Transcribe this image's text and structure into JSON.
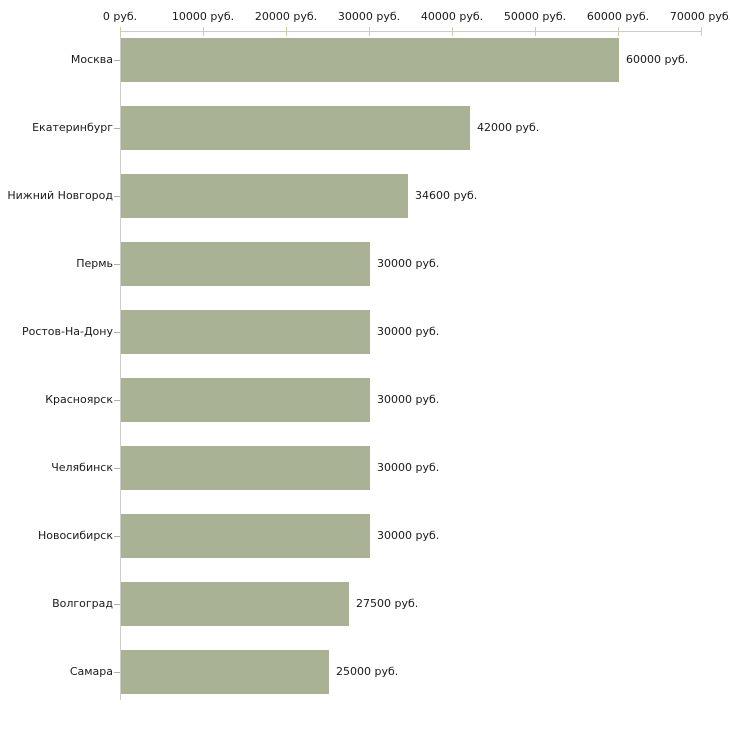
{
  "chart_data": {
    "type": "bar",
    "orientation": "horizontal",
    "title": "",
    "categories": [
      "Москва",
      "Екатеринбург",
      "Нижний Новгород",
      "Пермь",
      "Ростов-На-Дону",
      "Красноярск",
      "Челябинск",
      "Новосибирск",
      "Волгоград",
      "Самара"
    ],
    "values": [
      60000,
      42000,
      34600,
      30000,
      30000,
      30000,
      30000,
      30000,
      27500,
      25000
    ],
    "value_labels": [
      "60000 руб.",
      "42000 руб.",
      "34600 руб.",
      "30000 руб.",
      "30000 руб.",
      "30000 руб.",
      "30000 руб.",
      "30000 руб.",
      "27500 руб.",
      "25000 руб."
    ],
    "x_ticks": [
      0,
      10000,
      20000,
      30000,
      40000,
      50000,
      60000,
      70000
    ],
    "x_tick_labels": [
      "0 руб.",
      "10000 руб.",
      "20000 руб.",
      "30000 руб.",
      "40000 руб.",
      "50000 руб.",
      "60000 руб.",
      "70000 руб."
    ],
    "xlim": [
      0,
      70000
    ],
    "unit": "руб.",
    "xlabel": "",
    "ylabel": "",
    "grid": false,
    "legend": false,
    "colors": {
      "bar": "#aab296",
      "axis_line": "#cccccc",
      "x_tick": "#cdcda8",
      "y_tick": "#b0b0a0",
      "text": "#1a1a1a",
      "background": "#ffffff"
    }
  }
}
